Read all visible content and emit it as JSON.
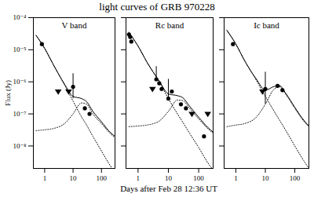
{
  "title": "light curves of GRB 970228",
  "x_label": "Days after Feb 28 12:36 UT",
  "chart_data": [
    {
      "type": "line",
      "title": "V band",
      "y_label": "Flux (Jy)",
      "log": true,
      "xlim": [
        0.4,
        300
      ],
      "ylim": [
        2e-09,
        0.0001
      ],
      "xticks": [
        1,
        10,
        100
      ],
      "yticks": [
        {
          "value": 1e-08,
          "label": "10⁻⁸"
        },
        {
          "value": 1e-07,
          "label": "10⁻⁷"
        },
        {
          "value": 1e-06,
          "label": "10⁻⁶"
        },
        {
          "value": 1e-05,
          "label": "10⁻⁵"
        },
        {
          "value": 0.0001,
          "label": "10⁻⁴"
        }
      ],
      "series": [
        {
          "type": "line",
          "color": "#000000",
          "line_style": "solid",
          "x": [
            0.5,
            1,
            2,
            5,
            10,
            20,
            30,
            50,
            100,
            200,
            300
          ],
          "values": [
            2.8e-05,
            1.1e-05,
            3.5e-06,
            8.5e-07,
            3.5e-07,
            3e-07,
            2.4e-07,
            1.2e-07,
            5.7e-08,
            2.7e-08,
            2e-08
          ]
        },
        {
          "type": "line",
          "color": "#000000",
          "line_style": "dotted",
          "x": [
            0.5,
            1,
            2,
            5,
            10,
            20,
            30,
            50,
            100,
            200,
            300
          ],
          "values": [
            2.8e-05,
            1.1e-05,
            3.5e-06,
            8e-07,
            2.5e-07,
            8e-08,
            4.5e-08,
            2e-08,
            7e-09,
            2.5e-09,
            1.5e-09
          ]
        },
        {
          "type": "line",
          "color": "#000000",
          "line_style": "dotted",
          "x": [
            0.5,
            1,
            2,
            5,
            10,
            20,
            30,
            50,
            100,
            200,
            300
          ],
          "values": [
            3e-08,
            3.2e-08,
            3.5e-08,
            5e-08,
            1e-07,
            2.2e-07,
            2e-07,
            1e-07,
            5e-08,
            2.5e-08,
            1.8e-08
          ]
        },
        {
          "type": "scatter",
          "color": "#000000",
          "marker": "circle",
          "x": [
            0.8,
            10,
            26,
            38
          ],
          "values": [
            1.5e-05,
            7e-07,
            1.5e-07,
            1e-07
          ],
          "y_low": [
            null,
            3e-07,
            null,
            null
          ],
          "y_high": [
            null,
            1.8e-06,
            null,
            null
          ]
        },
        {
          "type": "scatter",
          "color": "#000000",
          "marker": "triangle-down",
          "x": [
            3,
            7
          ],
          "values": [
            5e-07,
            5e-07
          ]
        }
      ]
    },
    {
      "type": "line",
      "title": "Rc band",
      "log": true,
      "tick_labels": "x",
      "xlim": [
        0.4,
        300
      ],
      "ylim": [
        2e-09,
        0.0001
      ],
      "xticks": [
        1,
        10,
        100
      ],
      "yticks": [
        1e-08,
        1e-07,
        1e-06,
        1e-05,
        0.0001
      ],
      "series": [
        {
          "type": "line",
          "color": "#000000",
          "line_style": "solid",
          "x": [
            0.5,
            1,
            2,
            5,
            10,
            20,
            30,
            50,
            100,
            200,
            300
          ],
          "values": [
            3.5e-05,
            1.3e-05,
            4e-06,
            1.06e-06,
            4.2e-07,
            3.7e-07,
            3.2e-07,
            1.75e-07,
            7.9e-08,
            3.8e-08,
            2.7e-08
          ]
        },
        {
          "type": "line",
          "color": "#000000",
          "line_style": "dotted",
          "x": [
            0.5,
            1,
            2,
            5,
            10,
            20,
            30,
            50,
            100,
            200,
            300
          ],
          "values": [
            3.5e-05,
            1.3e-05,
            4e-06,
            1e-06,
            3e-07,
            1e-07,
            5.5e-08,
            2.5e-08,
            9e-09,
            3e-09,
            1.8e-09
          ]
        },
        {
          "type": "line",
          "color": "#000000",
          "line_style": "dotted",
          "x": [
            0.5,
            1,
            2,
            5,
            10,
            20,
            30,
            50,
            100,
            200,
            300
          ],
          "values": [
            4e-08,
            4.2e-08,
            4.5e-08,
            6e-08,
            1.2e-07,
            2.7e-07,
            2.6e-07,
            1.5e-07,
            7e-08,
            3.5e-08,
            2.5e-08
          ]
        },
        {
          "type": "scatter",
          "color": "#000000",
          "marker": "circle",
          "x": [
            0.5,
            0.55,
            0.6,
            4,
            5,
            6,
            10,
            13,
            26,
            38,
            150
          ],
          "values": [
            3e-05,
            2.5e-05,
            1.8e-05,
            1.2e-06,
            9e-07,
            6e-07,
            3e-07,
            5e-07,
            2e-07,
            1.5e-07,
            2e-08
          ],
          "y_low": [
            null,
            null,
            null,
            null,
            null,
            null,
            null,
            null,
            null,
            null,
            null
          ],
          "y_high": [
            null,
            null,
            null,
            3e-06,
            null,
            null,
            1.2e-06,
            null,
            null,
            null,
            null
          ]
        },
        {
          "type": "scatter",
          "color": "#000000",
          "marker": "triangle-down",
          "x": [
            3,
            60,
            200
          ],
          "values": [
            6e-07,
            1e-07,
            1e-07
          ]
        }
      ]
    },
    {
      "type": "line",
      "title": "Ic band",
      "log": true,
      "tick_labels": "x",
      "xlim": [
        0.4,
        300
      ],
      "ylim": [
        2e-09,
        0.0001
      ],
      "xticks": [
        1,
        10,
        100
      ],
      "yticks": [
        1e-08,
        1e-07,
        1e-06,
        1e-05,
        0.0001
      ],
      "series": [
        {
          "type": "line",
          "color": "#000000",
          "line_style": "solid",
          "x": [
            0.5,
            1,
            2,
            5,
            10,
            20,
            30,
            50,
            100,
            200,
            300
          ],
          "values": [
            4e-05,
            1.5e-05,
            4.5e-06,
            1.2e-06,
            5.5e-07,
            7.2e-07,
            7.6e-07,
            4.3e-07,
            1.6e-07,
            6.4e-08,
            4.2e-08
          ]
        },
        {
          "type": "line",
          "color": "#000000",
          "line_style": "dotted",
          "x": [
            0.5,
            1,
            2,
            5,
            10,
            20,
            30,
            50,
            100,
            200,
            300
          ],
          "values": [
            4e-05,
            1.5e-05,
            4.5e-06,
            1.1e-06,
            3.5e-07,
            1.2e-07,
            6.5e-08,
            3e-08,
            1e-08,
            3.5e-09,
            2e-09
          ]
        },
        {
          "type": "line",
          "color": "#000000",
          "line_style": "dotted",
          "x": [
            0.5,
            1,
            2,
            5,
            10,
            20,
            30,
            50,
            100,
            200,
            300
          ],
          "values": [
            4e-08,
            4.5e-08,
            5e-08,
            8e-08,
            2e-07,
            6e-07,
            7e-07,
            4e-07,
            1.5e-07,
            6e-08,
            4e-08
          ]
        },
        {
          "type": "scatter",
          "color": "#000000",
          "marker": "circle",
          "x": [
            0.8,
            10,
            26,
            38
          ],
          "values": [
            1.5e-05,
            6e-07,
            7.5e-07,
            5.5e-07
          ],
          "y_low": [
            null,
            2e-07,
            null,
            null
          ],
          "y_high": [
            null,
            2e-06,
            null,
            null
          ]
        },
        {
          "type": "scatter",
          "color": "#000000",
          "marker": "triangle-down",
          "x": [
            8
          ],
          "values": [
            5e-07
          ]
        }
      ]
    }
  ]
}
